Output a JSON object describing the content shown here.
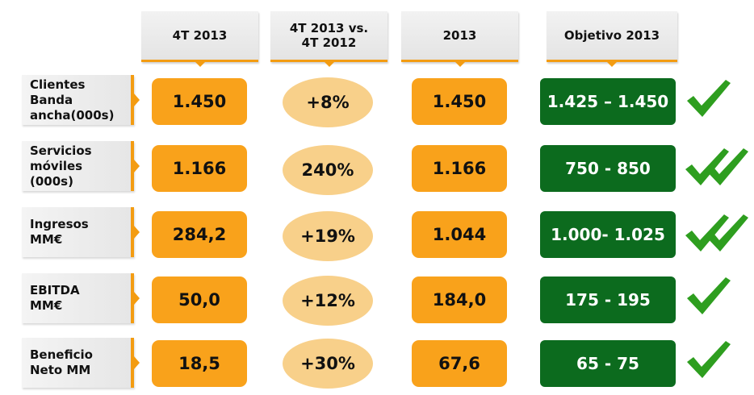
{
  "headers": [
    "4T 2013",
    "4T 2013 vs.\n4T 2012",
    "2013",
    "Objetivo 2013"
  ],
  "rows": [
    {
      "label": "Clientes\nBanda\nancha(000s)",
      "q4": "1.450",
      "change": "+8%",
      "year": "1.450",
      "target": "1.425 – 1.450",
      "checks": 1
    },
    {
      "label": "Servicios\nmóviles\n(000s)",
      "q4": "1.166",
      "change": "240%",
      "year": "1.166",
      "target": "750 - 850",
      "checks": 2
    },
    {
      "label": "Ingresos\nMM€",
      "q4": "284,2",
      "change": "+19%",
      "year": "1.044",
      "target": "1.000- 1.025",
      "checks": 2
    },
    {
      "label": "EBITDA\nMM€",
      "q4": "50,0",
      "change": "+12%",
      "year": "184,0",
      "target": "175 - 195",
      "checks": 1
    },
    {
      "label": "Beneficio\nNeto MM",
      "q4": "18,5",
      "change": "+30%",
      "year": "67,6",
      "target": "65 - 75",
      "checks": 1
    }
  ],
  "colors": {
    "orange": "#f9a21b",
    "light_orange": "#f8d08a",
    "green": "#0c6b1e",
    "check": "#2e9e1f"
  },
  "icons": {
    "check": "check-icon",
    "double_check": "double-check-icon"
  }
}
